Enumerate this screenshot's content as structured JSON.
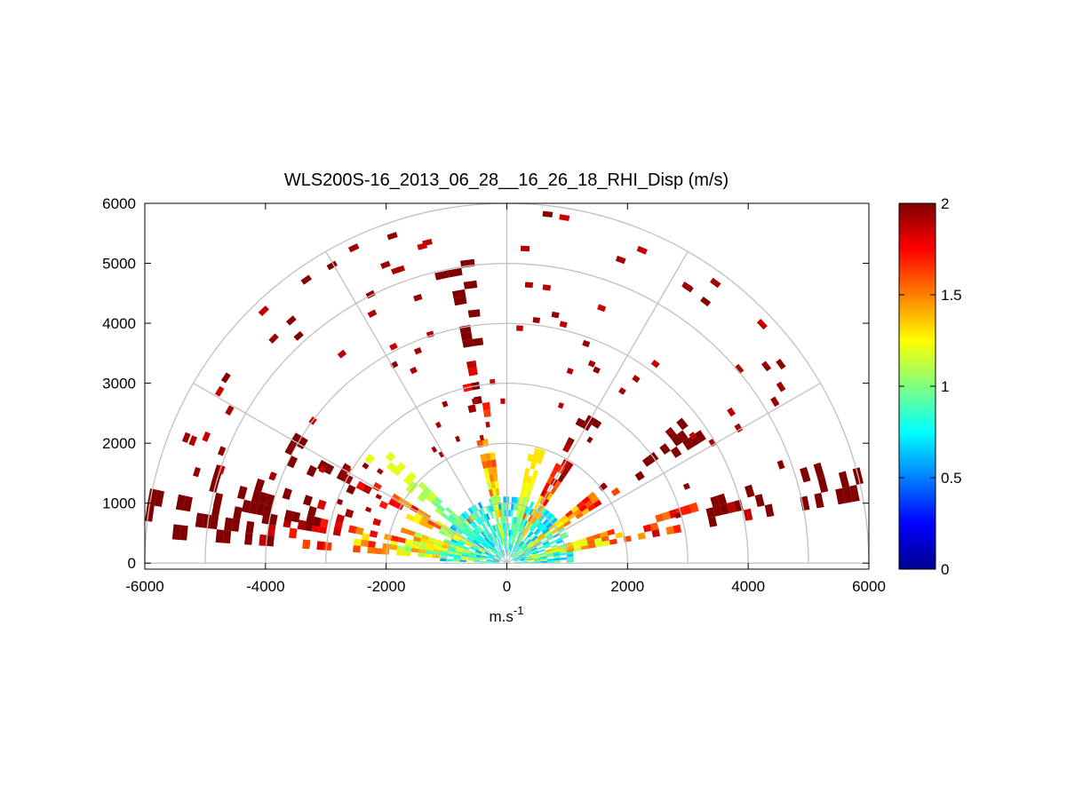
{
  "chart_data": {
    "type": "heatmap",
    "subtype": "polar-rhi-scan",
    "title": "WLS200S-16_2013_06_28__16_26_18_RHI_Disp (m/s)",
    "xlabel": "m.s",
    "xlabel_superscript": "-1",
    "ylabel": "",
    "xlim": [
      -6000,
      6000
    ],
    "ylim": [
      -100,
      6000
    ],
    "x_ticks": [
      "-6000",
      "-4000",
      "-2000",
      "0",
      "2000",
      "4000",
      "6000"
    ],
    "y_ticks": [
      "0",
      "1000",
      "2000",
      "3000",
      "4000",
      "5000",
      "6000"
    ],
    "x_tick_values": [
      -6000,
      -4000,
      -2000,
      0,
      2000,
      4000,
      6000
    ],
    "y_tick_values": [
      0,
      1000,
      2000,
      3000,
      4000,
      5000,
      6000
    ],
    "grid": "polar",
    "polar_grid_ranges": [
      1000,
      2000,
      3000,
      4000,
      5000,
      6000
    ],
    "polar_grid_angles_deg": [
      0,
      30,
      60,
      90,
      120,
      150,
      180
    ],
    "colormap": "jet",
    "colorbar": {
      "range": [
        0,
        2
      ],
      "ticks": [
        "0",
        "0.5",
        "1",
        "1.5",
        "2"
      ],
      "tick_values": [
        0,
        0.5,
        1,
        1.5,
        2
      ],
      "location": "right"
    },
    "colors": {
      "grid": "#c0c0c0",
      "axes": "#000000",
      "background": "#ffffff"
    },
    "sector_summary": [
      {
        "azimuth_deg": 172,
        "range_m": [
          400,
          6000
        ],
        "dispersion": "0.6-2.0"
      },
      {
        "azimuth_deg": 165,
        "range_m": [
          400,
          5000
        ],
        "dispersion": "0.6-2.0"
      },
      {
        "azimuth_deg": 152,
        "range_m": [
          400,
          4200
        ],
        "dispersion": "0.7-2.0"
      },
      {
        "azimuth_deg": 140,
        "range_m": [
          400,
          3000
        ],
        "dispersion": "0.7-1.2"
      },
      {
        "azimuth_deg": 100,
        "range_m": [
          300,
          5000
        ],
        "dispersion": "0.8-2.0"
      },
      {
        "azimuth_deg": 75,
        "range_m": [
          300,
          2000
        ],
        "dispersion": "0.8-1.3"
      },
      {
        "azimuth_deg": 60,
        "range_m": [
          300,
          3000
        ],
        "dispersion": "0.8-2.0"
      },
      {
        "azimuth_deg": 36,
        "range_m": [
          300,
          3800
        ],
        "dispersion": "0.8-2.0"
      },
      {
        "azimuth_deg": 14,
        "range_m": [
          300,
          6000
        ],
        "dispersion": "0.8-2.0"
      }
    ]
  }
}
